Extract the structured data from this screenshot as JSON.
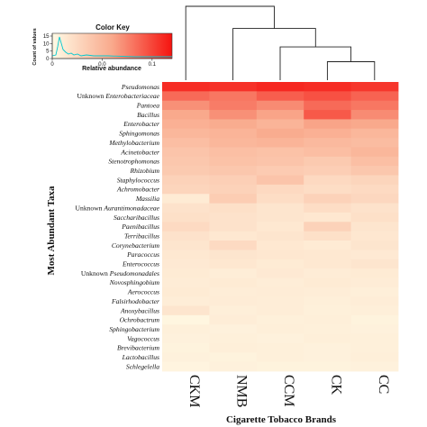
{
  "chart_data": {
    "type": "heatmap",
    "xlabel": "Cigarette Tobacco Brands",
    "ylabel": "Most Abundant Taxa",
    "columns": [
      "CKM",
      "NMB",
      "CCM",
      "CK",
      "CC"
    ],
    "rows": [
      {
        "label": "Pseudomonas",
        "italic": true,
        "values": [
          0.11,
          0.108,
          0.112,
          0.11,
          0.106
        ]
      },
      {
        "label": "Unknown Enterobacteriaceae",
        "prefix": "Unknown ",
        "italic_part": "Enterobacteriaceae",
        "values": [
          0.085,
          0.08,
          0.09,
          0.095,
          0.088
        ]
      },
      {
        "label": "Pantoea",
        "italic": true,
        "values": [
          0.07,
          0.078,
          0.072,
          0.085,
          0.08
        ]
      },
      {
        "label": "Bacillus",
        "italic": true,
        "values": [
          0.06,
          0.07,
          0.062,
          0.092,
          0.072
        ]
      },
      {
        "label": "Enterobacter",
        "italic": true,
        "values": [
          0.055,
          0.058,
          0.052,
          0.062,
          0.06
        ]
      },
      {
        "label": "Sphingomonas",
        "italic": true,
        "values": [
          0.05,
          0.052,
          0.058,
          0.055,
          0.05
        ]
      },
      {
        "label": "Methylobacterium",
        "italic": true,
        "values": [
          0.045,
          0.05,
          0.052,
          0.048,
          0.046
        ]
      },
      {
        "label": "Acinetobacter",
        "italic": true,
        "values": [
          0.04,
          0.044,
          0.042,
          0.045,
          0.05
        ]
      },
      {
        "label": "Stenotrophomonas",
        "italic": true,
        "values": [
          0.038,
          0.042,
          0.04,
          0.036,
          0.044
        ]
      },
      {
        "label": "Rhizobium",
        "italic": true,
        "values": [
          0.036,
          0.038,
          0.035,
          0.033,
          0.038
        ]
      },
      {
        "label": "Staphylococcus",
        "italic": true,
        "values": [
          0.03,
          0.032,
          0.04,
          0.025,
          0.028
        ]
      },
      {
        "label": "Achromobacter",
        "italic": true,
        "values": [
          0.028,
          0.03,
          0.025,
          0.022,
          0.024
        ]
      },
      {
        "label": "Massilia",
        "italic": true,
        "values": [
          0.012,
          0.034,
          0.022,
          0.03,
          0.026
        ]
      },
      {
        "label": "Unknown Aurantimonadaceae",
        "prefix": "Unknown ",
        "italic_part": "Aurantimonadaceae",
        "values": [
          0.018,
          0.02,
          0.016,
          0.022,
          0.018
        ]
      },
      {
        "label": "Saccharibacillus",
        "italic": true,
        "values": [
          0.02,
          0.018,
          0.016,
          0.015,
          0.02
        ]
      },
      {
        "label": "Paenibacillus",
        "italic": true,
        "values": [
          0.024,
          0.018,
          0.014,
          0.03,
          0.016
        ]
      },
      {
        "label": "Terribacillus",
        "italic": true,
        "values": [
          0.018,
          0.014,
          0.016,
          0.02,
          0.015
        ]
      },
      {
        "label": "Corynebacterium",
        "italic": true,
        "values": [
          0.016,
          0.024,
          0.014,
          0.012,
          0.016
        ]
      },
      {
        "label": "Paracoccus",
        "italic": true,
        "values": [
          0.014,
          0.016,
          0.015,
          0.014,
          0.013
        ]
      },
      {
        "label": "Enterococcus",
        "italic": true,
        "values": [
          0.013,
          0.015,
          0.012,
          0.014,
          0.016
        ]
      },
      {
        "label": "Unknown Pseudomonadales",
        "prefix": "Unknown ",
        "italic_part": "Pseudomonadales",
        "values": [
          0.012,
          0.01,
          0.013,
          0.011,
          0.012
        ]
      },
      {
        "label": "Novosphingobium",
        "italic": true,
        "values": [
          0.011,
          0.012,
          0.01,
          0.012,
          0.011
        ]
      },
      {
        "label": "Aerococcus",
        "italic": true,
        "values": [
          0.012,
          0.01,
          0.011,
          0.01,
          0.009
        ]
      },
      {
        "label": "Falsirhodobacter",
        "italic": true,
        "values": [
          0.01,
          0.011,
          0.01,
          0.009,
          0.01
        ]
      },
      {
        "label": "Anoxybacillus",
        "italic": true,
        "values": [
          0.016,
          0.009,
          0.01,
          0.008,
          0.009
        ]
      },
      {
        "label": "Ochrobactrum",
        "italic": true,
        "values": [
          0.004,
          0.01,
          0.008,
          0.009,
          0.006
        ]
      },
      {
        "label": "Sphingobacterium",
        "italic": true,
        "values": [
          0.008,
          0.007,
          0.009,
          0.008,
          0.007
        ]
      },
      {
        "label": "Vagococcus",
        "italic": true,
        "values": [
          0.007,
          0.008,
          0.007,
          0.009,
          0.008
        ]
      },
      {
        "label": "Brevibacterium",
        "italic": true,
        "values": [
          0.006,
          0.009,
          0.008,
          0.007,
          0.008
        ]
      },
      {
        "label": "Lactobacillus",
        "italic": true,
        "values": [
          0.007,
          0.006,
          0.008,
          0.007,
          0.009
        ]
      },
      {
        "label": "Schlegelella",
        "italic": true,
        "values": [
          0.005,
          0.007,
          0.006,
          0.006,
          0.007
        ]
      }
    ],
    "color_key": {
      "title": "Color Key",
      "xlabel": "Relative abundance",
      "ylabel": "Count of values",
      "range": [
        0,
        0.12
      ],
      "ticks": [
        {
          "value": 0,
          "label": "0"
        },
        {
          "value": 0.05,
          "label": "0.0"
        },
        {
          "value": 0.1,
          "label": "0.1"
        }
      ],
      "y_ticks": [
        0,
        5,
        10,
        15
      ],
      "low_color": "#fffbe6",
      "high_color": "#f5130f"
    },
    "dendrogram": {
      "clusters": [
        [
          3,
          4
        ],
        [
          2,
          [
            3,
            4
          ]
        ],
        [
          1,
          [
            2,
            [
              3,
              4
            ]
          ]
        ],
        [
          0,
          [
            1,
            [
              2,
              [
                3,
                4
              ]
            ]
          ]
        ]
      ],
      "heights": [
        0.25,
        0.45,
        0.7,
        1.0
      ]
    }
  }
}
